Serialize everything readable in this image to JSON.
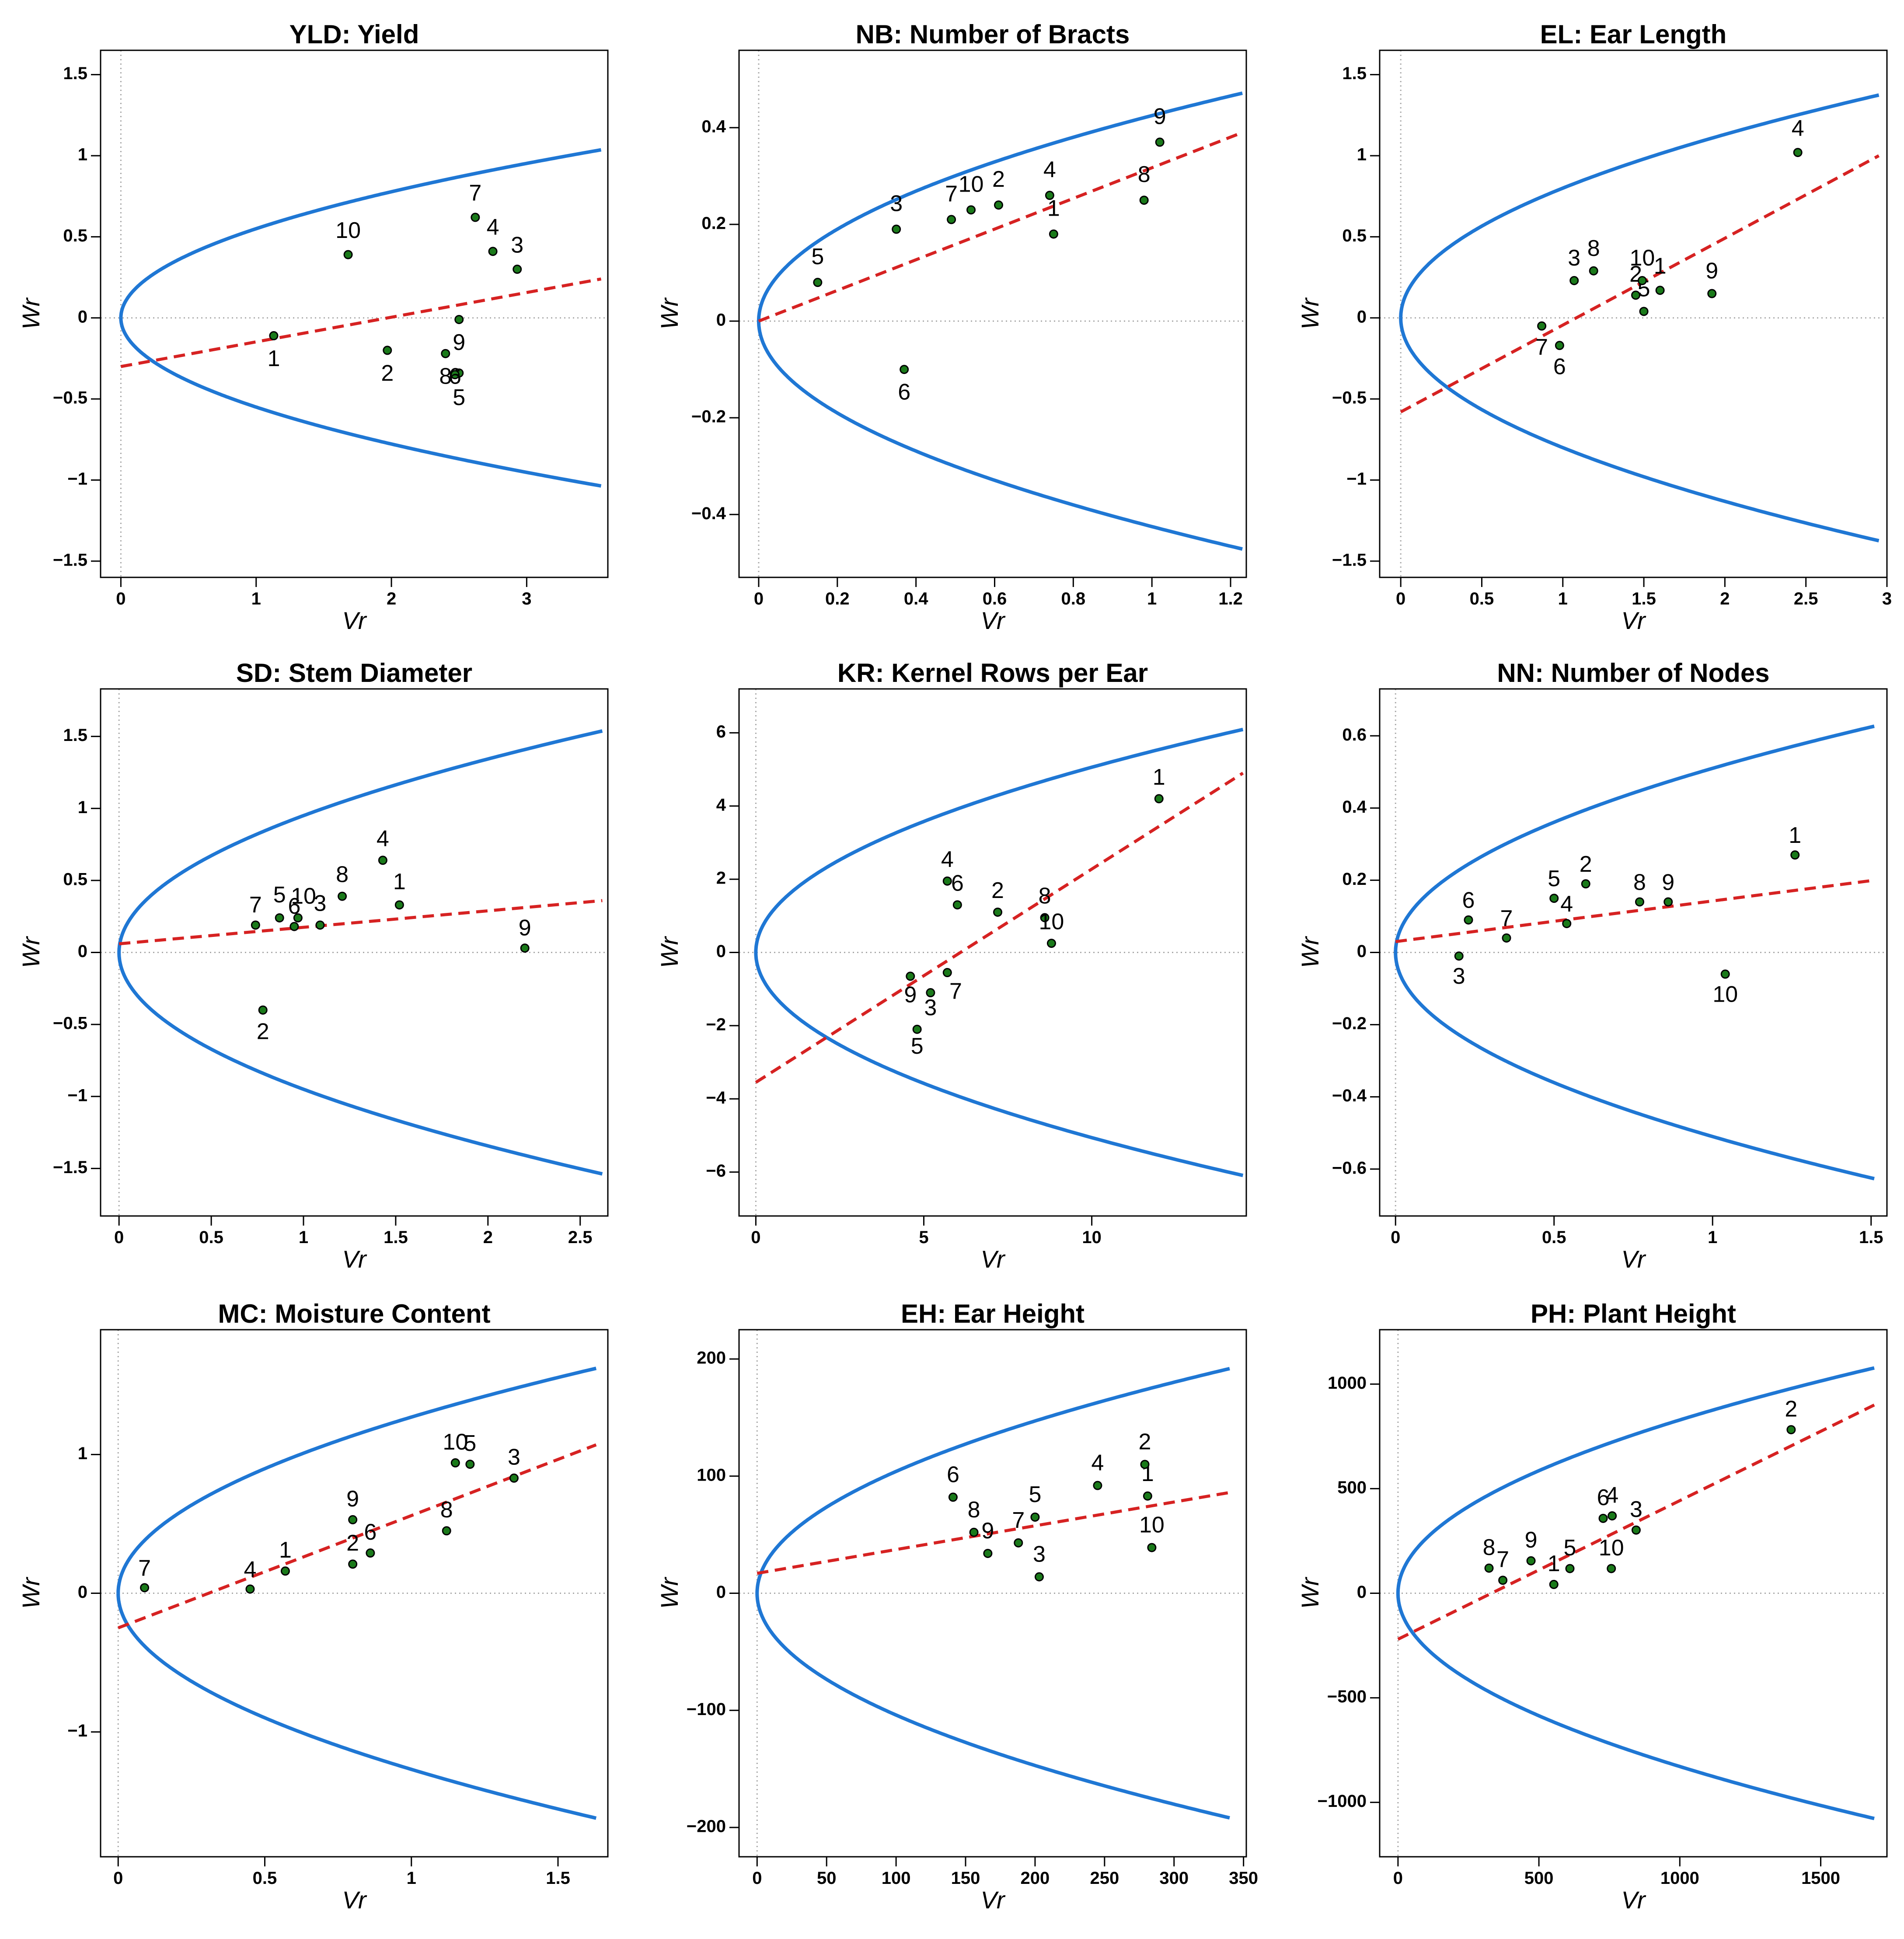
{
  "chart_data": [
    {
      "type": "scatter",
      "title": "YLD: Yield",
      "xlabel": "Vr",
      "ylabel": "Wr",
      "xlim": [
        -0.15,
        3.6
      ],
      "ylim": [
        -1.6,
        1.65
      ],
      "xticks": [
        0,
        1,
        2,
        3
      ],
      "xtick_labels": [
        "0",
        "1",
        "2",
        "3"
      ],
      "yticks": [
        -1.5,
        -1,
        -0.5,
        0,
        0.5,
        1,
        1.5
      ],
      "ytick_labels": [
        "−1.5",
        "−1",
        "−0.5",
        "0",
        "0.5",
        "1",
        "1.5"
      ],
      "parabola_k": 0.55,
      "parabola_xmax": 3.55,
      "regression": {
        "x": [
          0,
          3.55
        ],
        "y": [
          -0.3,
          0.24
        ]
      },
      "points": [
        {
          "label": "1",
          "x": 1.13,
          "y": -0.11,
          "lx": 1.13,
          "ly": -0.26
        },
        {
          "label": "2",
          "x": 1.97,
          "y": -0.2,
          "lx": 1.97,
          "ly": -0.35
        },
        {
          "label": "3",
          "x": 2.93,
          "y": 0.3,
          "lx": 2.93,
          "ly": 0.44
        },
        {
          "label": "4",
          "x": 2.75,
          "y": 0.41,
          "lx": 2.75,
          "ly": 0.55
        },
        {
          "label": "5",
          "x": 2.5,
          "y": -0.34,
          "lx": 2.5,
          "ly": -0.5
        },
        {
          "label": "6",
          "x": 2.47,
          "y": -0.35,
          "lx": 2.47,
          "ly": -0.37
        },
        {
          "label": "7",
          "x": 2.62,
          "y": 0.62,
          "lx": 2.62,
          "ly": 0.76
        },
        {
          "label": "8",
          "x": 2.4,
          "y": -0.22,
          "lx": 2.4,
          "ly": -0.37
        },
        {
          "label": "9",
          "x": 2.5,
          "y": -0.01,
          "lx": 2.5,
          "ly": -0.16
        },
        {
          "label": "10",
          "x": 1.68,
          "y": 0.39,
          "lx": 1.68,
          "ly": 0.53
        }
      ]
    },
    {
      "type": "scatter",
      "title": "NB: Number of Bracts",
      "xlabel": "Vr",
      "ylabel": "Wr",
      "xlim": [
        -0.05,
        1.24
      ],
      "ylim": [
        -0.53,
        0.56
      ],
      "xticks": [
        0,
        0.2,
        0.4,
        0.6,
        0.8,
        1,
        1.2
      ],
      "xtick_labels": [
        "0",
        "0.2",
        "0.4",
        "0.6",
        "0.8",
        "1",
        "1.2"
      ],
      "yticks": [
        -0.4,
        -0.2,
        0,
        0.2,
        0.4
      ],
      "ytick_labels": [
        "−0.4",
        "−0.2",
        "0",
        "0.2",
        "0.4"
      ],
      "parabola_k": 0.425,
      "parabola_xmax": 1.23,
      "regression": {
        "x": [
          0,
          1.23
        ],
        "y": [
          0.0,
          0.39
        ]
      },
      "points": [
        {
          "label": "1",
          "x": 0.75,
          "y": 0.18,
          "lx": 0.75,
          "ly": 0.23
        },
        {
          "label": "2",
          "x": 0.61,
          "y": 0.24,
          "lx": 0.61,
          "ly": 0.29
        },
        {
          "label": "3",
          "x": 0.35,
          "y": 0.19,
          "lx": 0.35,
          "ly": 0.24
        },
        {
          "label": "4",
          "x": 0.74,
          "y": 0.26,
          "lx": 0.74,
          "ly": 0.31
        },
        {
          "label": "5",
          "x": 0.15,
          "y": 0.08,
          "lx": 0.15,
          "ly": 0.13
        },
        {
          "label": "6",
          "x": 0.37,
          "y": -0.1,
          "lx": 0.37,
          "ly": -0.15
        },
        {
          "label": "7",
          "x": 0.49,
          "y": 0.21,
          "lx": 0.49,
          "ly": 0.26
        },
        {
          "label": "8",
          "x": 0.98,
          "y": 0.25,
          "lx": 0.98,
          "ly": 0.3
        },
        {
          "label": "9",
          "x": 1.02,
          "y": 0.37,
          "lx": 1.02,
          "ly": 0.42
        },
        {
          "label": "10",
          "x": 0.54,
          "y": 0.23,
          "lx": 0.54,
          "ly": 0.28
        }
      ]
    },
    {
      "type": "scatter",
      "title": "EL: Ear Length",
      "xlabel": "Vr",
      "ylabel": "Wr",
      "xlim": [
        -0.13,
        3.0
      ],
      "ylim": [
        -1.6,
        1.65
      ],
      "xticks": [
        0,
        0.5,
        1,
        1.5,
        2,
        2.5,
        3
      ],
      "xtick_labels": [
        "0",
        "0.5",
        "1",
        "1.5",
        "2",
        "2.5",
        "3"
      ],
      "yticks": [
        -1.5,
        -1,
        -0.5,
        0,
        0.5,
        1,
        1.5
      ],
      "ytick_labels": [
        "−1.5",
        "−1",
        "−0.5",
        "0",
        "0.5",
        "1",
        "1.5"
      ],
      "parabola_k": 0.8,
      "parabola_xmax": 2.95,
      "regression": {
        "x": [
          0,
          2.95
        ],
        "y": [
          -0.58,
          1.0
        ]
      },
      "points": [
        {
          "label": "1",
          "x": 1.6,
          "y": 0.17,
          "lx": 1.6,
          "ly": 0.31
        },
        {
          "label": "2",
          "x": 1.45,
          "y": 0.14,
          "lx": 1.45,
          "ly": 0.26
        },
        {
          "label": "3",
          "x": 1.07,
          "y": 0.23,
          "lx": 1.07,
          "ly": 0.36
        },
        {
          "label": "4",
          "x": 2.45,
          "y": 1.02,
          "lx": 2.45,
          "ly": 1.16
        },
        {
          "label": "5",
          "x": 1.5,
          "y": 0.04,
          "lx": 1.5,
          "ly": 0.17
        },
        {
          "label": "6",
          "x": 0.98,
          "y": -0.17,
          "lx": 0.98,
          "ly": -0.31
        },
        {
          "label": "7",
          "x": 0.87,
          "y": -0.05,
          "lx": 0.87,
          "ly": -0.19
        },
        {
          "label": "8",
          "x": 1.19,
          "y": 0.29,
          "lx": 1.19,
          "ly": 0.42
        },
        {
          "label": "9",
          "x": 1.92,
          "y": 0.15,
          "lx": 1.92,
          "ly": 0.28
        },
        {
          "label": "10",
          "x": 1.49,
          "y": 0.23,
          "lx": 1.49,
          "ly": 0.36
        }
      ]
    },
    {
      "type": "scatter",
      "title": "SD: Stem Diameter",
      "xlabel": "Vr",
      "ylabel": "Wr",
      "xlim": [
        -0.1,
        2.65
      ],
      "ylim": [
        -1.83,
        1.83
      ],
      "xticks": [
        0,
        0.5,
        1,
        1.5,
        2,
        2.5
      ],
      "xtick_labels": [
        "0",
        "0.5",
        "1",
        "1.5",
        "2",
        "2.5"
      ],
      "yticks": [
        -1.5,
        -1,
        -0.5,
        0,
        0.5,
        1,
        1.5
      ],
      "ytick_labels": [
        "−1.5",
        "−1",
        "−0.5",
        "0",
        "0.5",
        "1",
        "1.5"
      ],
      "parabola_k": 0.95,
      "parabola_xmax": 2.62,
      "regression": {
        "x": [
          0,
          2.62
        ],
        "y": [
          0.06,
          0.36
        ]
      },
      "points": [
        {
          "label": "1",
          "x": 1.52,
          "y": 0.33,
          "lx": 1.52,
          "ly": 0.48
        },
        {
          "label": "2",
          "x": 0.78,
          "y": -0.4,
          "lx": 0.78,
          "ly": -0.56
        },
        {
          "label": "3",
          "x": 1.09,
          "y": 0.19,
          "lx": 1.09,
          "ly": 0.33
        },
        {
          "label": "4",
          "x": 1.43,
          "y": 0.64,
          "lx": 1.43,
          "ly": 0.78
        },
        {
          "label": "5",
          "x": 0.87,
          "y": 0.24,
          "lx": 0.87,
          "ly": 0.39
        },
        {
          "label": "6",
          "x": 0.95,
          "y": 0.18,
          "lx": 0.95,
          "ly": 0.31
        },
        {
          "label": "7",
          "x": 0.74,
          "y": 0.19,
          "lx": 0.74,
          "ly": 0.32
        },
        {
          "label": "8",
          "x": 1.21,
          "y": 0.39,
          "lx": 1.21,
          "ly": 0.53
        },
        {
          "label": "9",
          "x": 2.2,
          "y": 0.03,
          "lx": 2.2,
          "ly": 0.16
        },
        {
          "label": "10",
          "x": 0.97,
          "y": 0.24,
          "lx": 1.0,
          "ly": 0.38
        }
      ]
    },
    {
      "type": "scatter",
      "title": "KR: Kernel Rows per Ear",
      "xlabel": "Vr",
      "ylabel": "Wr",
      "xlim": [
        -0.5,
        14.6
      ],
      "ylim": [
        -7.2,
        7.2
      ],
      "xticks": [
        0,
        5,
        10
      ],
      "xtick_labels": [
        "0",
        "5",
        "10"
      ],
      "yticks": [
        -6,
        -4,
        -2,
        0,
        2,
        4,
        6
      ],
      "ytick_labels": [
        "−6",
        "−4",
        "−2",
        "0",
        "2",
        "4",
        "6"
      ],
      "parabola_k": 1.6,
      "parabola_xmax": 14.5,
      "regression": {
        "x": [
          0,
          14.5
        ],
        "y": [
          -3.55,
          4.9
        ]
      },
      "points": [
        {
          "label": "1",
          "x": 12.0,
          "y": 4.2,
          "lx": 12.0,
          "ly": 4.75
        },
        {
          "label": "2",
          "x": 7.2,
          "y": 1.1,
          "lx": 7.2,
          "ly": 1.65
        },
        {
          "label": "3",
          "x": 5.2,
          "y": -1.1,
          "lx": 5.2,
          "ly": -1.55
        },
        {
          "label": "4",
          "x": 5.7,
          "y": 1.95,
          "lx": 5.7,
          "ly": 2.5
        },
        {
          "label": "5",
          "x": 4.8,
          "y": -2.1,
          "lx": 4.8,
          "ly": -2.6
        },
        {
          "label": "6",
          "x": 6.0,
          "y": 1.3,
          "lx": 6.0,
          "ly": 1.85
        },
        {
          "label": "7",
          "x": 5.7,
          "y": -0.55,
          "lx": 5.95,
          "ly": -1.1
        },
        {
          "label": "8",
          "x": 8.6,
          "y": 0.95,
          "lx": 8.6,
          "ly": 1.5
        },
        {
          "label": "9",
          "x": 4.6,
          "y": -0.65,
          "lx": 4.6,
          "ly": -1.2
        },
        {
          "label": "10",
          "x": 8.8,
          "y": 0.25,
          "lx": 8.8,
          "ly": 0.8
        }
      ]
    },
    {
      "type": "scatter",
      "title": "NN: Number of Nodes",
      "xlabel": "Vr",
      "ylabel": "Wr",
      "xlim": [
        -0.05,
        1.55
      ],
      "ylim": [
        -0.73,
        0.73
      ],
      "xticks": [
        0,
        0.5,
        1,
        1.5
      ],
      "xtick_labels": [
        "0",
        "0.5",
        "1",
        "1.5"
      ],
      "yticks": [
        -0.6,
        -0.4,
        -0.2,
        0,
        0.2,
        0.4,
        0.6
      ],
      "ytick_labels": [
        "−0.6",
        "−0.4",
        "−0.2",
        "0",
        "0.2",
        "0.4",
        "0.6"
      ],
      "parabola_k": 0.51,
      "parabola_xmax": 1.51,
      "regression": {
        "x": [
          0,
          1.51
        ],
        "y": [
          0.03,
          0.2
        ]
      },
      "points": [
        {
          "label": "1",
          "x": 1.26,
          "y": 0.27,
          "lx": 1.26,
          "ly": 0.32
        },
        {
          "label": "2",
          "x": 0.6,
          "y": 0.19,
          "lx": 0.6,
          "ly": 0.24
        },
        {
          "label": "3",
          "x": 0.2,
          "y": -0.01,
          "lx": 0.2,
          "ly": -0.07
        },
        {
          "label": "4",
          "x": 0.54,
          "y": 0.08,
          "lx": 0.54,
          "ly": 0.13
        },
        {
          "label": "5",
          "x": 0.5,
          "y": 0.15,
          "lx": 0.5,
          "ly": 0.2
        },
        {
          "label": "6",
          "x": 0.23,
          "y": 0.09,
          "lx": 0.23,
          "ly": 0.14
        },
        {
          "label": "7",
          "x": 0.35,
          "y": 0.04,
          "lx": 0.35,
          "ly": 0.09
        },
        {
          "label": "8",
          "x": 0.77,
          "y": 0.14,
          "lx": 0.77,
          "ly": 0.19
        },
        {
          "label": "9",
          "x": 0.86,
          "y": 0.14,
          "lx": 0.86,
          "ly": 0.19
        },
        {
          "label": "10",
          "x": 1.04,
          "y": -0.06,
          "lx": 1.04,
          "ly": -0.12
        }
      ]
    },
    {
      "type": "scatter",
      "title": "MC: Moisture Content",
      "xlabel": "Vr",
      "ylabel": "Wr",
      "xlim": [
        -0.06,
        1.67
      ],
      "ylim": [
        -1.9,
        1.9
      ],
      "xticks": [
        0,
        0.5,
        1,
        1.5
      ],
      "xtick_labels": [
        "0",
        "0.5",
        "1",
        "1.5"
      ],
      "yticks": [
        -1,
        0,
        1
      ],
      "ytick_labels": [
        "−1",
        "0",
        "1"
      ],
      "parabola_k": 1.27,
      "parabola_xmax": 1.63,
      "regression": {
        "x": [
          0,
          1.63
        ],
        "y": [
          -0.25,
          1.07
        ]
      },
      "points": [
        {
          "label": "1",
          "x": 0.57,
          "y": 0.16,
          "lx": 0.57,
          "ly": 0.3
        },
        {
          "label": "2",
          "x": 0.8,
          "y": 0.21,
          "lx": 0.8,
          "ly": 0.35
        },
        {
          "label": "3",
          "x": 1.35,
          "y": 0.83,
          "lx": 1.35,
          "ly": 0.97
        },
        {
          "label": "4",
          "x": 0.45,
          "y": 0.03,
          "lx": 0.45,
          "ly": 0.16
        },
        {
          "label": "5",
          "x": 1.2,
          "y": 0.93,
          "lx": 1.2,
          "ly": 1.07
        },
        {
          "label": "6",
          "x": 0.86,
          "y": 0.29,
          "lx": 0.86,
          "ly": 0.43
        },
        {
          "label": "7",
          "x": 0.09,
          "y": 0.04,
          "lx": 0.09,
          "ly": 0.17
        },
        {
          "label": "8",
          "x": 1.12,
          "y": 0.45,
          "lx": 1.12,
          "ly": 0.59
        },
        {
          "label": "9",
          "x": 0.8,
          "y": 0.53,
          "lx": 0.8,
          "ly": 0.67
        },
        {
          "label": "10",
          "x": 1.15,
          "y": 0.94,
          "lx": 1.15,
          "ly": 1.08
        }
      ]
    },
    {
      "type": "scatter",
      "title": "EH: Ear Height",
      "xlabel": "Vr",
      "ylabel": "Wr",
      "xlim": [
        -13,
        352
      ],
      "ylim": [
        -225,
        225
      ],
      "xticks": [
        0,
        50,
        100,
        150,
        200,
        250,
        300,
        350
      ],
      "xtick_labels": [
        "0",
        "50",
        "100",
        "150",
        "200",
        "250",
        "300",
        "350"
      ],
      "yticks": [
        -200,
        -100,
        0,
        100,
        200
      ],
      "ytick_labels": [
        "−200",
        "−100",
        "0",
        "100",
        "200"
      ],
      "parabola_k": 10.4,
      "parabola_xmax": 340,
      "regression": {
        "x": [
          0,
          340
        ],
        "y": [
          17,
          86
        ]
      },
      "points": [
        {
          "label": "1",
          "x": 281,
          "y": 83,
          "lx": 281,
          "ly": 101
        },
        {
          "label": "2",
          "x": 279,
          "y": 110,
          "lx": 279,
          "ly": 128
        },
        {
          "label": "3",
          "x": 203,
          "y": 14,
          "lx": 203,
          "ly": 32
        },
        {
          "label": "4",
          "x": 245,
          "y": 92,
          "lx": 245,
          "ly": 110
        },
        {
          "label": "5",
          "x": 200,
          "y": 65,
          "lx": 200,
          "ly": 83
        },
        {
          "label": "6",
          "x": 141,
          "y": 82,
          "lx": 141,
          "ly": 100
        },
        {
          "label": "7",
          "x": 188,
          "y": 43,
          "lx": 188,
          "ly": 61
        },
        {
          "label": "8",
          "x": 156,
          "y": 52,
          "lx": 156,
          "ly": 70
        },
        {
          "label": "9",
          "x": 166,
          "y": 34,
          "lx": 166,
          "ly": 52
        },
        {
          "label": "10",
          "x": 284,
          "y": 39,
          "lx": 284,
          "ly": 57
        }
      ]
    },
    {
      "type": "scatter",
      "title": "PH: Plant Height",
      "xlabel": "Vr",
      "ylabel": "Wr",
      "xlim": [
        -65,
        1735
      ],
      "ylim": [
        -1260,
        1260
      ],
      "xticks": [
        0,
        500,
        1000,
        1500
      ],
      "xtick_labels": [
        "0",
        "500",
        "1000",
        "1500"
      ],
      "yticks": [
        -1000,
        -500,
        0,
        500,
        1000
      ],
      "ytick_labels": [
        "−1000",
        "−500",
        "0",
        "500",
        "1000"
      ],
      "parabola_k": 26.2,
      "parabola_xmax": 1690,
      "regression": {
        "x": [
          0,
          1690
        ],
        "y": [
          -220,
          900
        ]
      },
      "points": [
        {
          "label": "1",
          "x": 553,
          "y": 42,
          "lx": 553,
          "ly": 134
        },
        {
          "label": "2",
          "x": 1395,
          "y": 782,
          "lx": 1395,
          "ly": 874
        },
        {
          "label": "3",
          "x": 845,
          "y": 302,
          "lx": 845,
          "ly": 394
        },
        {
          "label": "4",
          "x": 760,
          "y": 370,
          "lx": 760,
          "ly": 462
        },
        {
          "label": "5",
          "x": 610,
          "y": 118,
          "lx": 610,
          "ly": 210
        },
        {
          "label": "6",
          "x": 728,
          "y": 358,
          "lx": 728,
          "ly": 450
        },
        {
          "label": "7",
          "x": 372,
          "y": 62,
          "lx": 372,
          "ly": 154
        },
        {
          "label": "8",
          "x": 323,
          "y": 120,
          "lx": 323,
          "ly": 212
        },
        {
          "label": "9",
          "x": 472,
          "y": 155,
          "lx": 472,
          "ly": 247
        },
        {
          "label": "10",
          "x": 757,
          "y": 118,
          "lx": 757,
          "ly": 210
        }
      ]
    }
  ]
}
